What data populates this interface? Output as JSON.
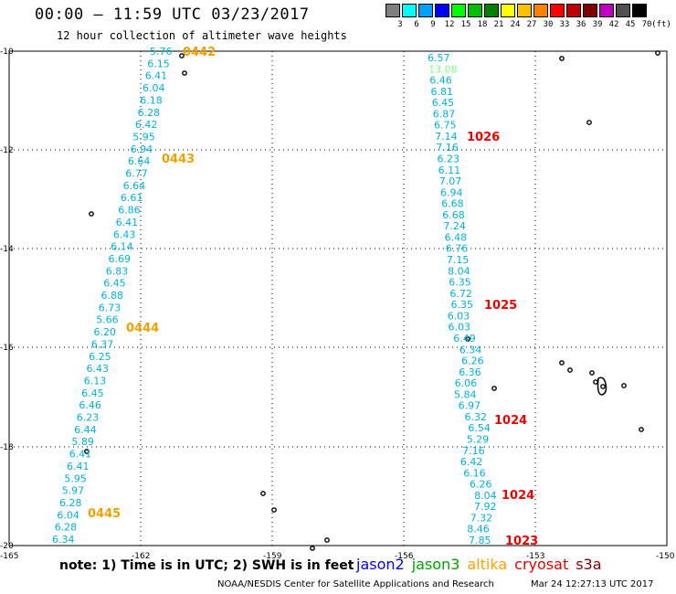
{
  "header": {
    "title": "00:00 — 11:59 UTC 03/23/2017",
    "subtitle": "12 hour collection of altimeter wave heights"
  },
  "scale": {
    "unit": "(ft)",
    "levels": [
      {
        "label": "3",
        "color": "#7f7f7f"
      },
      {
        "label": "6",
        "color": "#00ffff"
      },
      {
        "label": "9",
        "color": "#00a0ff"
      },
      {
        "label": "12",
        "color": "#0000ff"
      },
      {
        "label": "15",
        "color": "#00ff00"
      },
      {
        "label": "18",
        "color": "#00c000"
      },
      {
        "label": "21",
        "color": "#008000"
      },
      {
        "label": "24",
        "color": "#ffff00"
      },
      {
        "label": "27",
        "color": "#ffc000"
      },
      {
        "label": "30",
        "color": "#ff8000"
      },
      {
        "label": "33",
        "color": "#ff0000"
      },
      {
        "label": "36",
        "color": "#c00000"
      },
      {
        "label": "39",
        "color": "#800000"
      },
      {
        "label": "42",
        "color": "#c000c0"
      },
      {
        "label": "45",
        "color": "#505050"
      },
      {
        "label": "70",
        "color": "#000000"
      }
    ]
  },
  "axes": {
    "lat_labels": [
      "-10",
      "-12",
      "-14",
      "-16",
      "-18",
      "-20"
    ],
    "lon_labels": [
      "-165",
      "-162",
      "-159",
      "-156",
      "-153",
      "-150"
    ]
  },
  "track_west": {
    "values": [
      "5.76",
      "6.15",
      "6.41",
      "6.04",
      "6.18",
      "6.28",
      "6.42",
      "5.95",
      "6.94",
      "6.64",
      "6.77",
      "6.64",
      "6.61",
      "6.86",
      "6.41",
      "6.43",
      "6.14",
      "6.69",
      "6.83",
      "6.45",
      "6.88",
      "6.73",
      "5.66",
      "6.20",
      "6.37",
      "6.25",
      "6.43",
      "6.13",
      "6.45",
      "6.46",
      "6.23",
      "6.44",
      "5.89",
      "6.41",
      "6.41",
      "5.95",
      "5.97",
      "6.28",
      "6.04",
      "6.28",
      "6.34"
    ],
    "times": [
      "0442",
      "0443",
      "0444",
      "0445"
    ],
    "value_color": "#00b0e0",
    "time_color": "#f0a000"
  },
  "track_east": {
    "values": [
      "6.57",
      "13.08",
      "6.46",
      "6.81",
      "6.45",
      "6.87",
      "6.75",
      "7.14",
      "7.16",
      "6.23",
      "6.11",
      "7.07",
      "6.94",
      "6.68",
      "6.68",
      "7.24",
      "6.48",
      "6.76",
      "7.15",
      "8.04",
      "6.35",
      "6.72",
      "6.35",
      "6.03",
      "6.03",
      "6.49",
      "6.34",
      "6.26",
      "6.36",
      "6.06",
      "5.84",
      "6.97",
      "6.32",
      "6.54",
      "5.29",
      "7.16",
      "6.42",
      "6.16",
      "6.26",
      "8.04",
      "7.92",
      "7.32",
      "8.46",
      "7.85"
    ],
    "highlight_value": "13.08",
    "highlight_color": "#80ff80",
    "times": [
      "1026",
      "1025",
      "1024",
      "1024",
      "1023"
    ],
    "value_color": "#00b0e0",
    "time_color": "#ee0000"
  },
  "footer": {
    "note": "note: 1) Time is in UTC; 2) SWH is in feet",
    "legend": [
      {
        "name": "jason2",
        "color": "#0000ff"
      },
      {
        "name": "jason3",
        "color": "#00a000"
      },
      {
        "name": "altika",
        "color": "#ffa000"
      },
      {
        "name": "cryosat",
        "color": "#ee0000"
      },
      {
        "name": "s3a",
        "color": "#800000"
      }
    ],
    "credit": "NOAA/NESDIS Center for Satellite Applications and Research",
    "date": "Mar 24 12:27:13 UTC 2017"
  }
}
